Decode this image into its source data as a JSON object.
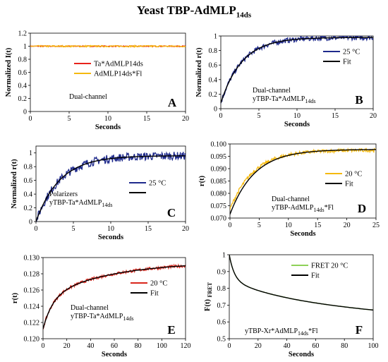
{
  "title": {
    "main": "Yeast TBP-AdMLP",
    "sub": "14ds"
  },
  "chart_data": [
    {
      "panel": "A",
      "type": "line",
      "ylabel": "Normalized I(t)",
      "xlabel": "Seconds",
      "xlim": [
        0,
        20
      ],
      "ylim": [
        0,
        1.2
      ],
      "xticks": [
        "0",
        "5",
        "10",
        "15",
        "20"
      ],
      "yticks": [
        "0",
        "0.2",
        "0.4",
        "0.6",
        "0.8",
        "1",
        "1.2"
      ],
      "annotation": "Dual-channel",
      "series": [
        {
          "name": "Ta*AdMLP14ds",
          "color": "#e8231b",
          "shape": "flat",
          "value": 1.0,
          "noise": 0.008
        },
        {
          "name": "AdMLP14ds*Fl",
          "color": "#f5b90f",
          "shape": "flat",
          "value": 1.0,
          "noise": 0.012
        }
      ],
      "legend": "center-right"
    },
    {
      "panel": "B",
      "type": "line",
      "ylabel": "Normalized r(t)",
      "xlabel": "Seconds",
      "xlim": [
        0,
        20
      ],
      "ylim": [
        0,
        1
      ],
      "xticks": [
        "0",
        "5",
        "10",
        "15",
        "20"
      ],
      "yticks": [
        "0",
        "0.2",
        "0.4",
        "0.6",
        "0.8",
        "1"
      ],
      "annotation": [
        "Dual-channel",
        "yTBP-Ta*AdMLP14ds"
      ],
      "series": [
        {
          "name": "25 °C",
          "color": "#1f2a8c",
          "shape": "exp",
          "y0": 0.08,
          "yinf": 0.98,
          "tau": 2.8,
          "noise": 0.035
        },
        {
          "name": "Fit",
          "color": "#000000",
          "shape": "exp",
          "y0": 0.08,
          "yinf": 0.98,
          "tau": 2.8,
          "noise": 0
        }
      ],
      "legend": "center-right"
    },
    {
      "panel": "C",
      "type": "line",
      "ylabel": "Normalized r(t)",
      "xlabel": "Seconds",
      "xlim": [
        0,
        20
      ],
      "ylim": [
        0,
        1.1
      ],
      "xticks": [
        "0",
        "5",
        "10",
        "15",
        "20"
      ],
      "yticks": [
        "0",
        "0.2",
        "0.4",
        "0.6",
        "0.8",
        "1"
      ],
      "annotation": [
        "Polarizers",
        "yTBP-Ta*AdMLP14ds"
      ],
      "series": [
        {
          "name": "25 °C",
          "color": "#1f2a8c",
          "shape": "exp",
          "y0": 0.0,
          "yinf": 0.96,
          "tau": 3.2,
          "noise": 0.06
        },
        {
          "name": "",
          "color": "#000000",
          "shape": "exp",
          "y0": 0.0,
          "yinf": 0.96,
          "tau": 3.2,
          "noise": 0
        }
      ],
      "legend": "center-right"
    },
    {
      "panel": "D",
      "type": "line",
      "ylabel": "r(t)",
      "xlabel": "Seconds",
      "xlim": [
        0,
        25
      ],
      "ylim": [
        0.07,
        0.1
      ],
      "xticks": [
        "0",
        "5",
        "10",
        "15",
        "20",
        "25"
      ],
      "yticks": [
        "0.070",
        "0.075",
        "0.080",
        "0.085",
        "0.090",
        "0.095",
        "0.100"
      ],
      "annotation": [
        "Dual-channel",
        "yTBP-AdMLP14ds*Fl"
      ],
      "series": [
        {
          "name": "20 °C",
          "color": "#f5b90f",
          "shape": "exp",
          "y0": 0.0735,
          "yinf": 0.0975,
          "tau": 4.0,
          "noise": 0.0007
        },
        {
          "name": "Fit",
          "color": "#000000",
          "shape": "exp",
          "y0": 0.0715,
          "yinf": 0.0978,
          "tau": 4.2,
          "noise": 0
        }
      ],
      "legend": "center-right"
    },
    {
      "panel": "E",
      "type": "line",
      "ylabel": "r(t)",
      "xlabel": "Seconds",
      "xlim": [
        0,
        120
      ],
      "ylim": [
        0.12,
        0.13
      ],
      "xticks": [
        "0",
        "20",
        "40",
        "60",
        "80",
        "100",
        "120"
      ],
      "yticks": [
        "0.120",
        "0.122",
        "0.124",
        "0.126",
        "0.128",
        "0.130"
      ],
      "annotation": [
        "Dual-channel",
        "yTBP-Ta*AdMLP14ds"
      ],
      "series": [
        {
          "name": "20 °C",
          "color": "#d9261c",
          "shape": "biexp",
          "y0": 0.1212,
          "a1": 0.0038,
          "t1": 8,
          "a2": 0.0045,
          "t2": 55,
          "noise": 0.00018
        },
        {
          "name": "Fit",
          "color": "#000000",
          "shape": "biexp",
          "y0": 0.1212,
          "a1": 0.0038,
          "t1": 8,
          "a2": 0.0045,
          "t2": 55,
          "noise": 0
        }
      ],
      "legend": "center-right"
    },
    {
      "panel": "F",
      "type": "line",
      "ylabel": "F(t) FRET",
      "xlabel": "Seconds",
      "xlim": [
        0,
        100
      ],
      "ylim": [
        0.5,
        1
      ],
      "xticks": [
        "0",
        "20",
        "40",
        "60",
        "80",
        "100"
      ],
      "yticks": [
        "0.5",
        "0.6",
        "0.7",
        "0.8",
        "0.9",
        "1"
      ],
      "annotation": "yTBP-Xr*AdMLP14ds*Fl",
      "series": [
        {
          "name": "FRET 20 °C",
          "color": "#8ed158",
          "shape": "decay",
          "y0": 1.0,
          "a1": 0.15,
          "t1": 3.5,
          "a2": 0.13,
          "t2": 40,
          "lin": 0.0006,
          "noise": 0.0015
        },
        {
          "name": "Fit",
          "color": "#000000",
          "shape": "decay",
          "y0": 1.0,
          "a1": 0.15,
          "t1": 3.5,
          "a2": 0.13,
          "t2": 40,
          "lin": 0.0006,
          "noise": 0
        }
      ],
      "legend": "top-right"
    }
  ]
}
